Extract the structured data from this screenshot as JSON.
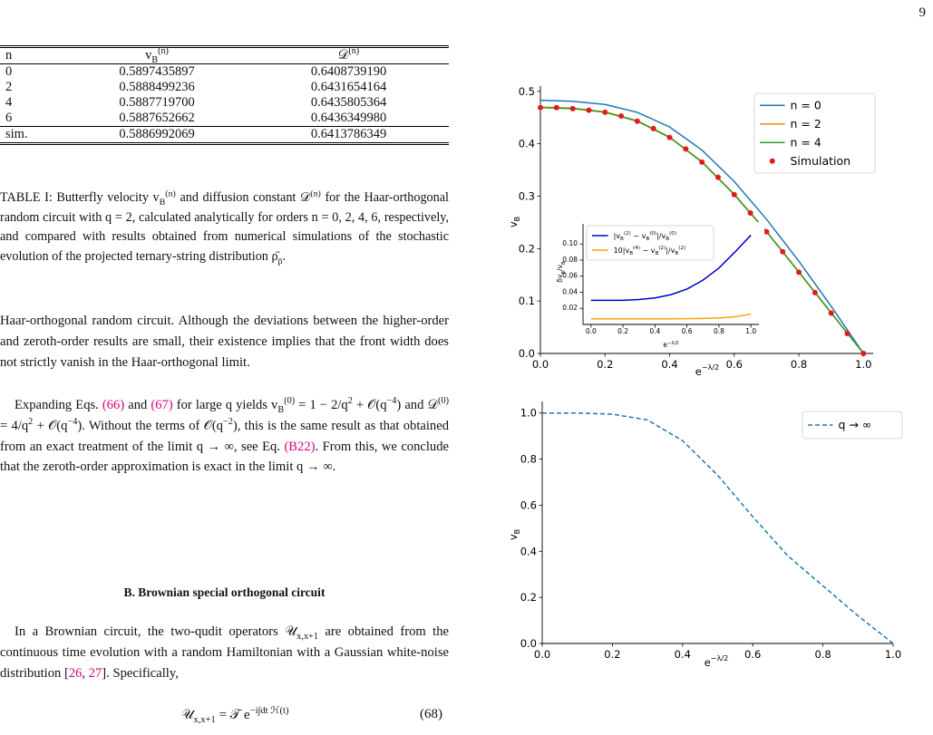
{
  "page_number": "9",
  "table": {
    "header": [
      "n",
      "v_{B}^{(n)}",
      "𝒟^{(n)}"
    ],
    "rows": [
      [
        "0",
        "0.5897435897",
        "0.6408739190"
      ],
      [
        "2",
        "0.5888499236",
        "0.6431654164"
      ],
      [
        "4",
        "0.5887719700",
        "0.6435805364"
      ],
      [
        "6",
        "0.5887652662",
        "0.6436349980"
      ],
      [
        "sim.",
        "0.5886992069",
        "0.6413786349"
      ]
    ]
  },
  "caption": "TABLE I: Butterfly velocity v_{B}^{(n)} and diffusion constant 𝒟^{(n)} for the Haar-orthogonal random circuit with q = 2, calculated analytically for orders n = 0, 2, 4, 6, respectively, and compared with results obtained from numerical simulations of the stochastic evolution of the projected ternary-string distribution ρ̄_{p̄}.",
  "paragraphs": [
    "Haar-orthogonal random circuit. Although the deviations between the higher-order and zeroth-order results are small, their existence implies that the front width does not strictly vanish in the Haar-orthogonal limit.",
    "Expanding Eqs. {{(66)}} and {{(67)}} for large q yields v_{B}^{(0)} = 1 − 2/q^{2} + 𝒪(q^{−4}) and 𝒟^{(0)} = 4/q^{2} + 𝒪(q^{−4}). Without the terms of 𝒪(q^{−2}), this is the same result as that obtained from an exact treatment of the limit q → ∞, see Eq. {{(B22)}}. From this, we conclude that the zeroth-order approximation is exact in the limit q → ∞.",
    "In a Brownian circuit, the two-qudit operators 𝒰_{x,x+1} are obtained from the continuous time evolution with a random Hamiltonian with a Gaussian white-noise distribution [{{26}}, {{27}}]. Specifically,"
  ],
  "section_heading": "B. Brownian special orthogonal circuit",
  "equation": "𝒰_{x,x+1} = 𝒯 e^{−i∫dt ℋ(t)}",
  "equation_number": "(68)",
  "chart_data": [
    {
      "type": "line",
      "xlabel": "e^{−λ/2}",
      "ylabel": "v_{B}",
      "xlim": [
        0,
        1.03
      ],
      "ylim": [
        0,
        0.51
      ],
      "xticks": [
        {
          "value": 0,
          "label": "0.0"
        },
        0.2,
        0.4,
        0.6,
        0.8,
        {
          "value": 1,
          "label": "1.0"
        }
      ],
      "yticks": [
        {
          "value": 0,
          "label": "0.0"
        },
        0.1,
        0.2,
        0.3,
        0.4,
        0.5
      ],
      "legend": "upper right",
      "series": [
        {
          "name": "n = 0",
          "color": "#1f77b4",
          "x": [
            0,
            0.1,
            0.2,
            0.3,
            0.4,
            0.5,
            0.6,
            0.7,
            0.8,
            0.9,
            1.0
          ],
          "values": [
            0.483,
            0.481,
            0.475,
            0.46,
            0.432,
            0.388,
            0.328,
            0.256,
            0.176,
            0.09,
            0.0
          ]
        },
        {
          "name": "n = 2",
          "color": "#ff7f0e",
          "x": [
            0,
            0.1,
            0.2,
            0.3,
            0.4,
            0.5,
            0.6,
            0.7,
            0.8,
            0.9,
            1.0
          ],
          "values": [
            0.47,
            0.468,
            0.461,
            0.444,
            0.413,
            0.366,
            0.304,
            0.233,
            0.156,
            0.078,
            0.0
          ]
        },
        {
          "name": "n = 4",
          "color": "#2ca02c",
          "x": [
            0,
            0.1,
            0.2,
            0.3,
            0.4,
            0.5,
            0.6,
            0.7,
            0.8,
            0.9,
            1.0
          ],
          "values": [
            0.469,
            0.467,
            0.46,
            0.443,
            0.412,
            0.365,
            0.303,
            0.232,
            0.155,
            0.077,
            0.0
          ]
        },
        {
          "name": "Simulation",
          "color": "#e31a1c",
          "marker": "dot",
          "x": [
            0,
            0.05,
            0.1,
            0.15,
            0.2,
            0.25,
            0.3,
            0.35,
            0.4,
            0.45,
            0.5,
            0.55,
            0.6,
            0.65,
            0.7,
            0.75,
            0.8,
            0.85,
            0.9,
            0.95,
            1.0
          ],
          "values": [
            0.469,
            0.469,
            0.467,
            0.464,
            0.46,
            0.453,
            0.443,
            0.429,
            0.412,
            0.39,
            0.365,
            0.336,
            0.303,
            0.268,
            0.232,
            0.194,
            0.155,
            0.116,
            0.077,
            0.038,
            0.0
          ]
        }
      ]
    },
    {
      "type": "line",
      "xlabel": "e^{−λ/2}",
      "ylabel": "δv_{B}/v_{B}",
      "xlim": [
        -0.05,
        1.05
      ],
      "ylim": [
        0,
        0.125
      ],
      "xticks": [
        {
          "value": 0,
          "label": "0.0"
        },
        0.2,
        0.4,
        0.6,
        0.8,
        {
          "value": 1,
          "label": "1.0"
        }
      ],
      "yticks": [
        0.02,
        0.04,
        0.06,
        0.08,
        {
          "value": 0.1,
          "label": "0.10"
        }
      ],
      "legend": "upper left",
      "series": [
        {
          "name": "|v_{B}^{(2)} − v_{B}^{(0)}|/v_{B}^{(0)}",
          "color": "#0000cc",
          "x": [
            0,
            0.1,
            0.2,
            0.3,
            0.4,
            0.5,
            0.6,
            0.7,
            0.8,
            0.9,
            1.0
          ],
          "values": [
            0.03,
            0.03,
            0.03,
            0.031,
            0.033,
            0.037,
            0.044,
            0.055,
            0.07,
            0.09,
            0.111
          ]
        },
        {
          "name": "10|v_{B}^{(4)} − v_{B}^{(2)}|/v_{B}^{(2)}",
          "color": "#ffa500",
          "x": [
            0,
            0.1,
            0.2,
            0.3,
            0.4,
            0.5,
            0.6,
            0.7,
            0.8,
            0.9,
            1.0
          ],
          "values": [
            0.007,
            0.007,
            0.007,
            0.007,
            0.007,
            0.007,
            0.0072,
            0.0075,
            0.008,
            0.0095,
            0.013
          ]
        }
      ]
    },
    {
      "type": "line",
      "xlabel": "e^{−λ/2}",
      "ylabel": "v_{B}",
      "xlim": [
        0,
        1
      ],
      "ylim": [
        0,
        1.05
      ],
      "xticks": [
        {
          "value": 0,
          "label": "0.0"
        },
        0.2,
        0.4,
        0.6,
        0.8,
        {
          "value": 1,
          "label": "1.0"
        }
      ],
      "yticks": [
        {
          "value": 0,
          "label": "0.0"
        },
        0.2,
        0.4,
        0.6,
        0.8,
        {
          "value": 1,
          "label": "1.0"
        }
      ],
      "legend": "upper right",
      "series": [
        {
          "name": "q → ∞",
          "color": "#1f77b4",
          "dash": true,
          "x": [
            0,
            0.1,
            0.2,
            0.3,
            0.4,
            0.5,
            0.6,
            0.7,
            0.8,
            0.9,
            1.0
          ],
          "values": [
            1.0,
            1.0,
            0.995,
            0.97,
            0.88,
            0.73,
            0.55,
            0.38,
            0.25,
            0.12,
            0.0
          ]
        }
      ]
    }
  ]
}
